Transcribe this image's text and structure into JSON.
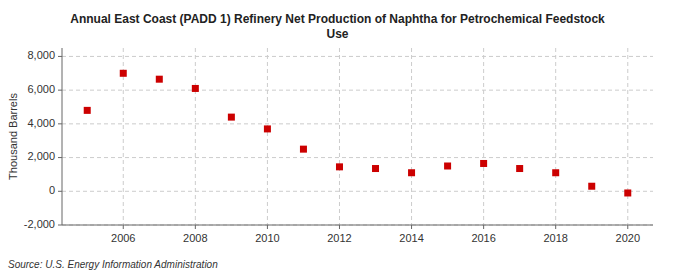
{
  "chart_data": {
    "type": "scatter",
    "title": "Annual East Coast (PADD 1) Refinery Net Production of Naphtha for Petrochemical Feedstock\nUse",
    "ylabel": "Thousand Barrels",
    "source": "Source: U.S. Energy Information Administration",
    "x": [
      2005,
      2006,
      2007,
      2008,
      2009,
      2010,
      2011,
      2012,
      2013,
      2014,
      2015,
      2016,
      2017,
      2018,
      2019,
      2020
    ],
    "values": [
      4800,
      7000,
      6650,
      6100,
      4400,
      3700,
      2500,
      1450,
      1350,
      1100,
      1500,
      1650,
      1350,
      1100,
      300,
      -100
    ],
    "color": "#cc0000",
    "marker": "square",
    "grid": true,
    "xlim": [
      2004.3,
      2020.7
    ],
    "xticks": [
      2006,
      2008,
      2010,
      2012,
      2014,
      2016,
      2018,
      2020
    ],
    "ylim": [
      -2000,
      8500
    ],
    "yticks": [
      {
        "value": -2000,
        "label": "-2,000"
      },
      0,
      {
        "value": 2000,
        "label": "2,000"
      },
      {
        "value": 4000,
        "label": "4,000"
      },
      {
        "value": 6000,
        "label": "6,000"
      },
      {
        "value": 8000,
        "label": "8,000"
      }
    ]
  }
}
